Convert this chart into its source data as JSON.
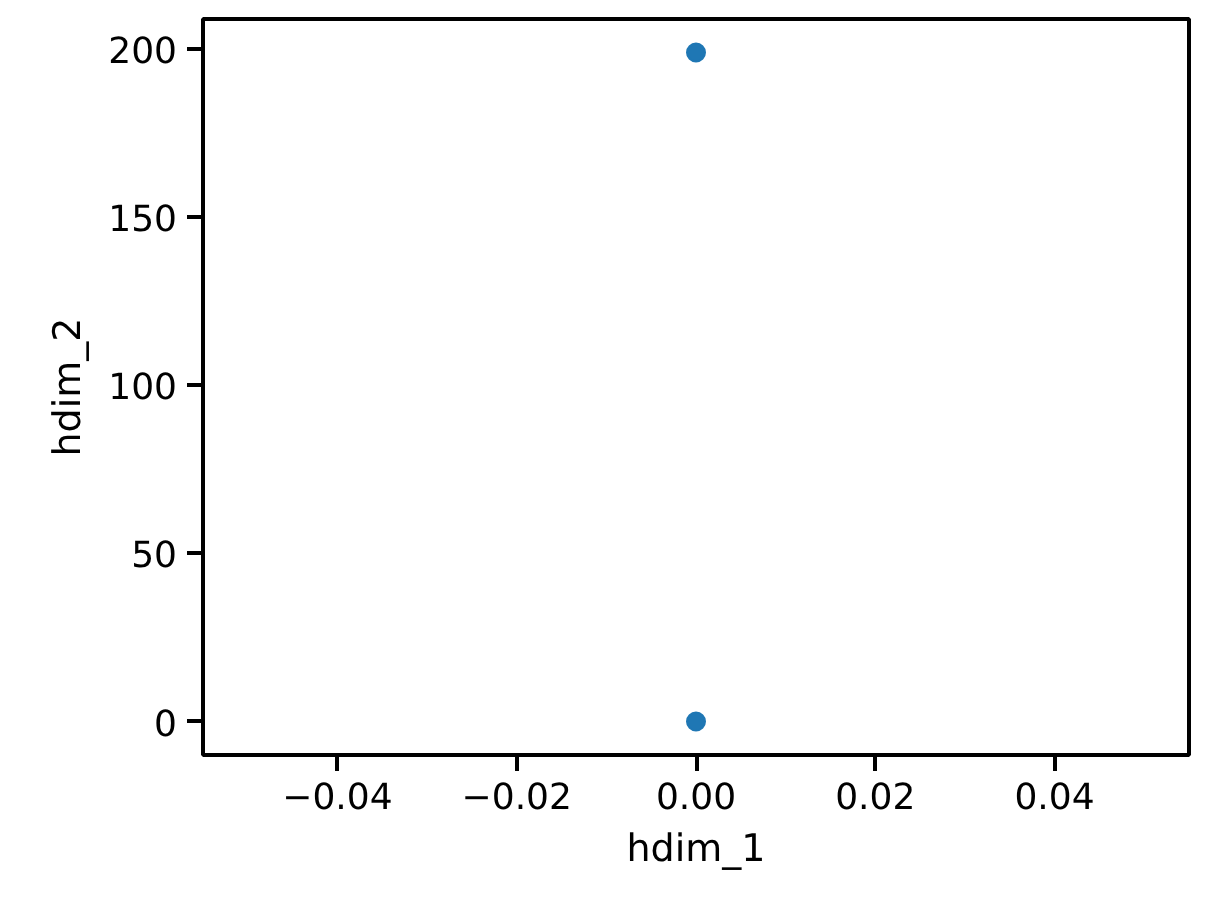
{
  "chart_data": {
    "type": "scatter",
    "xlabel": "hdim_1",
    "ylabel": "hdim_2",
    "x": [
      0,
      0
    ],
    "series": [
      {
        "color": "#1f77b4",
        "values": [
          0,
          199
        ]
      }
    ],
    "xlim": [
      -0.055,
      0.055
    ],
    "xticks": [
      {
        "value": -0.04,
        "label": "−0.04"
      },
      {
        "value": -0.02,
        "label": "−0.02"
      },
      {
        "value": 0,
        "label": "0.00"
      },
      {
        "value": 0.02,
        "label": "0.02"
      },
      {
        "value": 0.04,
        "label": "0.04"
      }
    ],
    "ylim": [
      -9.95,
      208.95
    ],
    "yticks": [
      0,
      50,
      100,
      150,
      200
    ],
    "marker": "circle",
    "grid": false
  }
}
